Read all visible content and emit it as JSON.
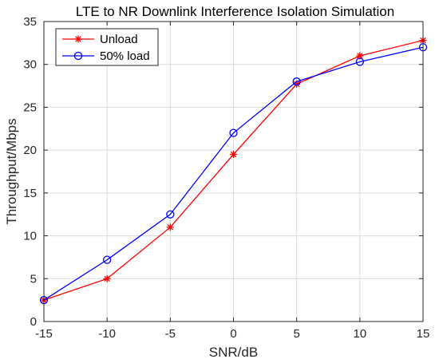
{
  "chart_data": {
    "type": "line",
    "title": "LTE to NR Downlink Interference Isolation Simulation",
    "xlabel": "SNR/dB",
    "ylabel": "Throughput/Mbps",
    "x": [
      -15,
      -10,
      -5,
      0,
      5,
      10,
      15
    ],
    "xlim": [
      -15,
      15
    ],
    "ylim": [
      0,
      35
    ],
    "xticks": [
      -15,
      -10,
      -5,
      0,
      5,
      10,
      15
    ],
    "yticks": [
      0,
      5,
      10,
      15,
      20,
      25,
      30,
      35
    ],
    "grid": true,
    "legend_position": "top-left",
    "series": [
      {
        "name": "Unload",
        "color": "#ff0000",
        "marker": "asterisk",
        "values": [
          2.5,
          5.0,
          11.0,
          19.5,
          27.7,
          31.0,
          32.8
        ]
      },
      {
        "name": "50% load",
        "color": "#0000ff",
        "marker": "circle",
        "values": [
          2.5,
          7.2,
          12.5,
          22.0,
          28.0,
          30.3,
          32.0
        ]
      }
    ]
  }
}
